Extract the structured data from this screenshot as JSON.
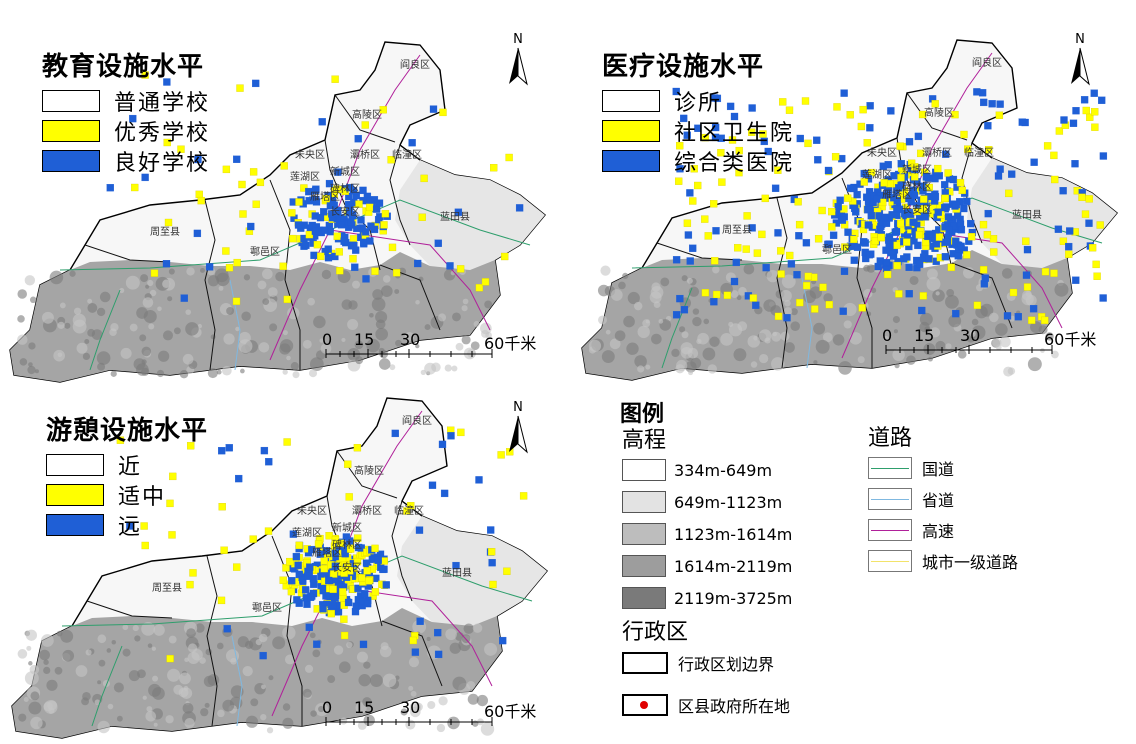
{
  "panels": [
    {
      "title": "教育设施水平",
      "legend": [
        "普通学校",
        "优秀学校",
        "良好学校"
      ],
      "legend_colors": [
        "#ffffff",
        "#ffff00",
        "#1f5fd6"
      ],
      "north": "N",
      "scale": {
        "ticks": [
          "0",
          "15",
          "30",
          "60千米"
        ]
      }
    },
    {
      "title": "医疗设施水平",
      "legend": [
        "诊所",
        "社区卫生院",
        "综合类医院"
      ],
      "legend_colors": [
        "#ffffff",
        "#ffff00",
        "#1f5fd6"
      ],
      "north": "N",
      "scale": {
        "ticks": [
          "0",
          "15",
          "30",
          "60千米"
        ]
      }
    },
    {
      "title": "游憩设施水平",
      "legend": [
        "近",
        "适中",
        "远"
      ],
      "legend_colors": [
        "#ffffff",
        "#ffff00",
        "#1f5fd6"
      ],
      "north": "N",
      "scale": {
        "ticks": [
          "0",
          "15",
          "30",
          "60千米"
        ]
      }
    }
  ],
  "district_labels": [
    "阎良区",
    "高陵区",
    "临潼区",
    "灞桥区",
    "未央区",
    "莲湖区",
    "新城区",
    "碑林区",
    "雁塔区",
    "长安区",
    "蓝田县",
    "鄠邑区",
    "周至县"
  ],
  "legend": {
    "title": "图例",
    "elevation_title": "高程",
    "elevation": [
      {
        "label": "334m-649m",
        "color": "#ffffff"
      },
      {
        "label": "649m-1123m",
        "color": "#e3e3e3"
      },
      {
        "label": "1123m-1614m",
        "color": "#bdbdbd"
      },
      {
        "label": "1614m-2119m",
        "color": "#9d9d9d"
      },
      {
        "label": "2119m-3725m",
        "color": "#7a7a7a"
      }
    ],
    "roads_title": "道路",
    "roads": [
      {
        "label": "国道",
        "color": "#2e9e6c"
      },
      {
        "label": "省道",
        "color": "#7fb8e0"
      },
      {
        "label": "高速",
        "color": "#b0209a"
      },
      {
        "label": "城市一级道路",
        "color": "#f2e36a"
      }
    ],
    "admin_title": "行政区",
    "admin": [
      {
        "label": "行政区划边界"
      },
      {
        "label": "区县政府所在地"
      }
    ]
  }
}
